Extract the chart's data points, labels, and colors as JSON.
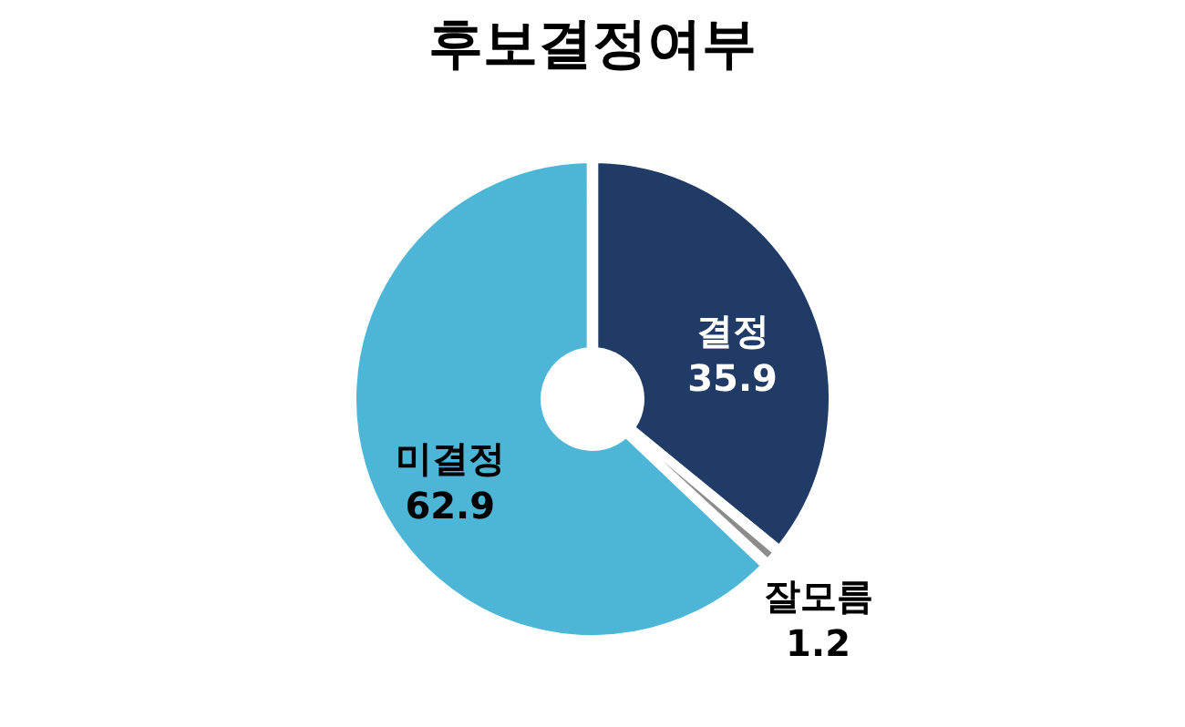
{
  "chart_data": {
    "type": "donut",
    "title": "후보결정여부",
    "categories": [
      "결정",
      "잘모름",
      "미결정"
    ],
    "values": [
      35.9,
      1.2,
      62.9
    ],
    "colors": [
      "#1f3b66",
      "#8c8c8c",
      "#4db6d6"
    ],
    "data_labels": true,
    "legend": false
  }
}
